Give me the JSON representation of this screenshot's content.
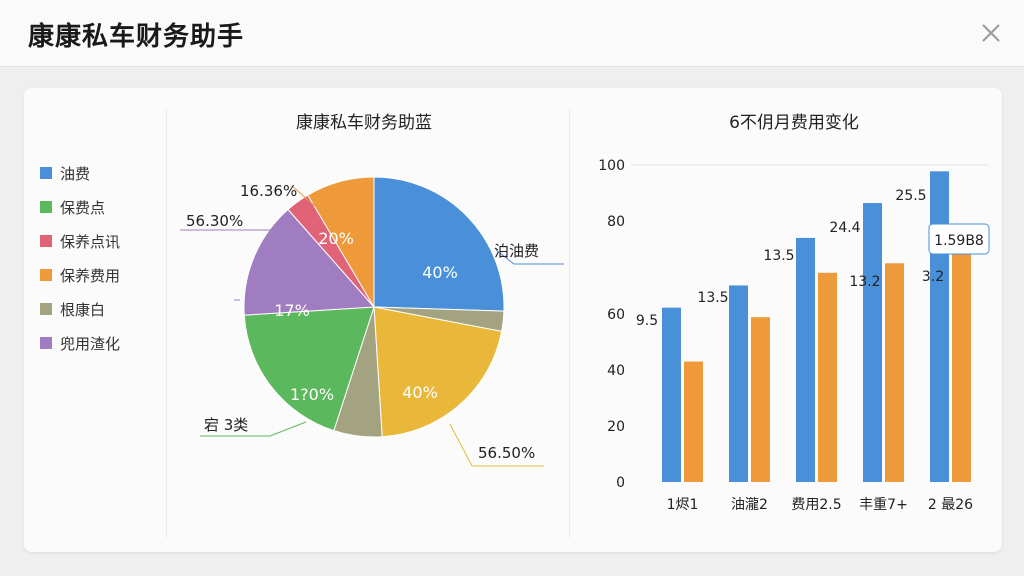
{
  "app": {
    "title": "康康私车财务助手",
    "close_icon": "close-icon"
  },
  "legend": [
    {
      "label": "油费",
      "color": "#4a90d9"
    },
    {
      "label": "保费点",
      "color": "#5cb85c"
    },
    {
      "label": "保养点讯",
      "color": "#e06377"
    },
    {
      "label": "保养费用",
      "color": "#ee9a3a"
    },
    {
      "label": "根康白",
      "color": "#a3a382"
    },
    {
      "label": "兜用渣化",
      "color": "#a07cc0"
    }
  ],
  "pie": {
    "title": "康康私车财务助蓝",
    "inner_labels": [
      "40%",
      "40%",
      "17%",
      "20%",
      "1?0%"
    ],
    "callouts": [
      "16.36%",
      "56.30%",
      "泊油费",
      "56.50%",
      "宕 3类"
    ]
  },
  "bar": {
    "title": "6不仴月费用变化",
    "y_ticks": [
      "100",
      "80",
      "60",
      "40",
      "20",
      "0"
    ],
    "tooltip": "1.59B8",
    "value_labels": [
      "9.5",
      "13.5",
      "13.5",
      "24.4",
      "13.2",
      "25.5",
      "3.2"
    ]
  },
  "chart_data": [
    {
      "type": "pie",
      "title": "康康私车财务助蓝",
      "slices": [
        {
          "label": "油费",
          "value": 25.5,
          "color": "#4a90d9"
        },
        {
          "label": "根康白",
          "value": 2.5,
          "color": "#a3a382"
        },
        {
          "label": "保养费用",
          "value": 21,
          "color": "#e9b83a"
        },
        {
          "label": "根康白",
          "value": 6,
          "color": "#a3a382"
        },
        {
          "label": "保费点",
          "value": 19,
          "color": "#5cb85c"
        },
        {
          "label": "兜用渣化",
          "value": 14.5,
          "color": "#a07cc0"
        },
        {
          "label": "保养点讯",
          "value": 3,
          "color": "#e06377"
        },
        {
          "label": "保养费用",
          "value": 8.5,
          "color": "#ee9a3a"
        }
      ]
    },
    {
      "type": "bar",
      "title": "6不仴月费用变化",
      "categories": [
        "1烬1",
        "油瀧2",
        "费用2.5",
        "丰重7+",
        "2 最26"
      ],
      "series": [
        {
          "values": [
            55,
            62,
            77,
            88,
            98
          ],
          "color": "#4a90d9"
        },
        {
          "values": [
            38,
            52,
            66,
            69,
            72
          ],
          "color": "#ee9a3a"
        }
      ],
      "ylim": [
        0,
        100
      ],
      "grid": false
    }
  ]
}
